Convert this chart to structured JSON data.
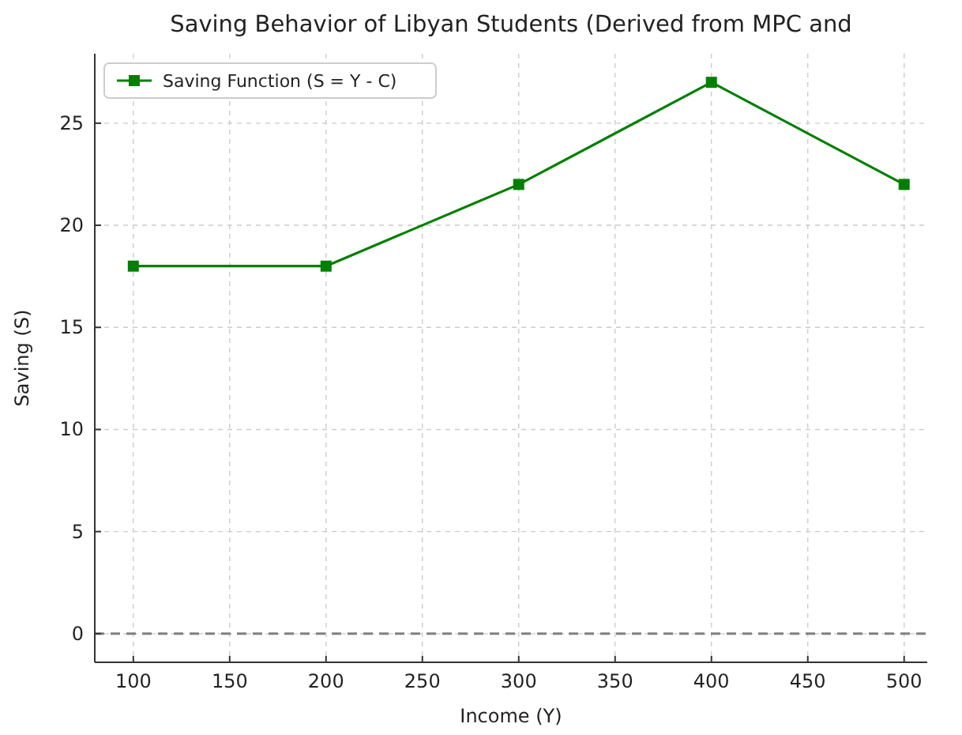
{
  "chart_data": {
    "type": "line",
    "title": "Saving Behavior of Libyan Students (Derived from MPC and",
    "xlabel": "Income (Y)",
    "ylabel": "Saving (S)",
    "x": [
      100,
      200,
      300,
      400,
      500
    ],
    "series": [
      {
        "name": "Saving Function (S = Y - C)",
        "color": "#008000",
        "values": [
          18,
          18,
          22,
          27,
          22
        ]
      }
    ],
    "xlim": [
      80,
      512
    ],
    "ylim": [
      -1.4,
      28.4
    ],
    "xticks": [
      100,
      150,
      200,
      250,
      300,
      350,
      400,
      450,
      500
    ],
    "yticks": [
      0,
      5,
      10,
      15,
      20,
      25
    ],
    "ref_lines": [
      {
        "axis": "y",
        "value": 0,
        "color": "#808080",
        "line_style": "dashed"
      }
    ],
    "grid": true,
    "legend": "top left",
    "marker": "square",
    "line_style": "solid"
  }
}
